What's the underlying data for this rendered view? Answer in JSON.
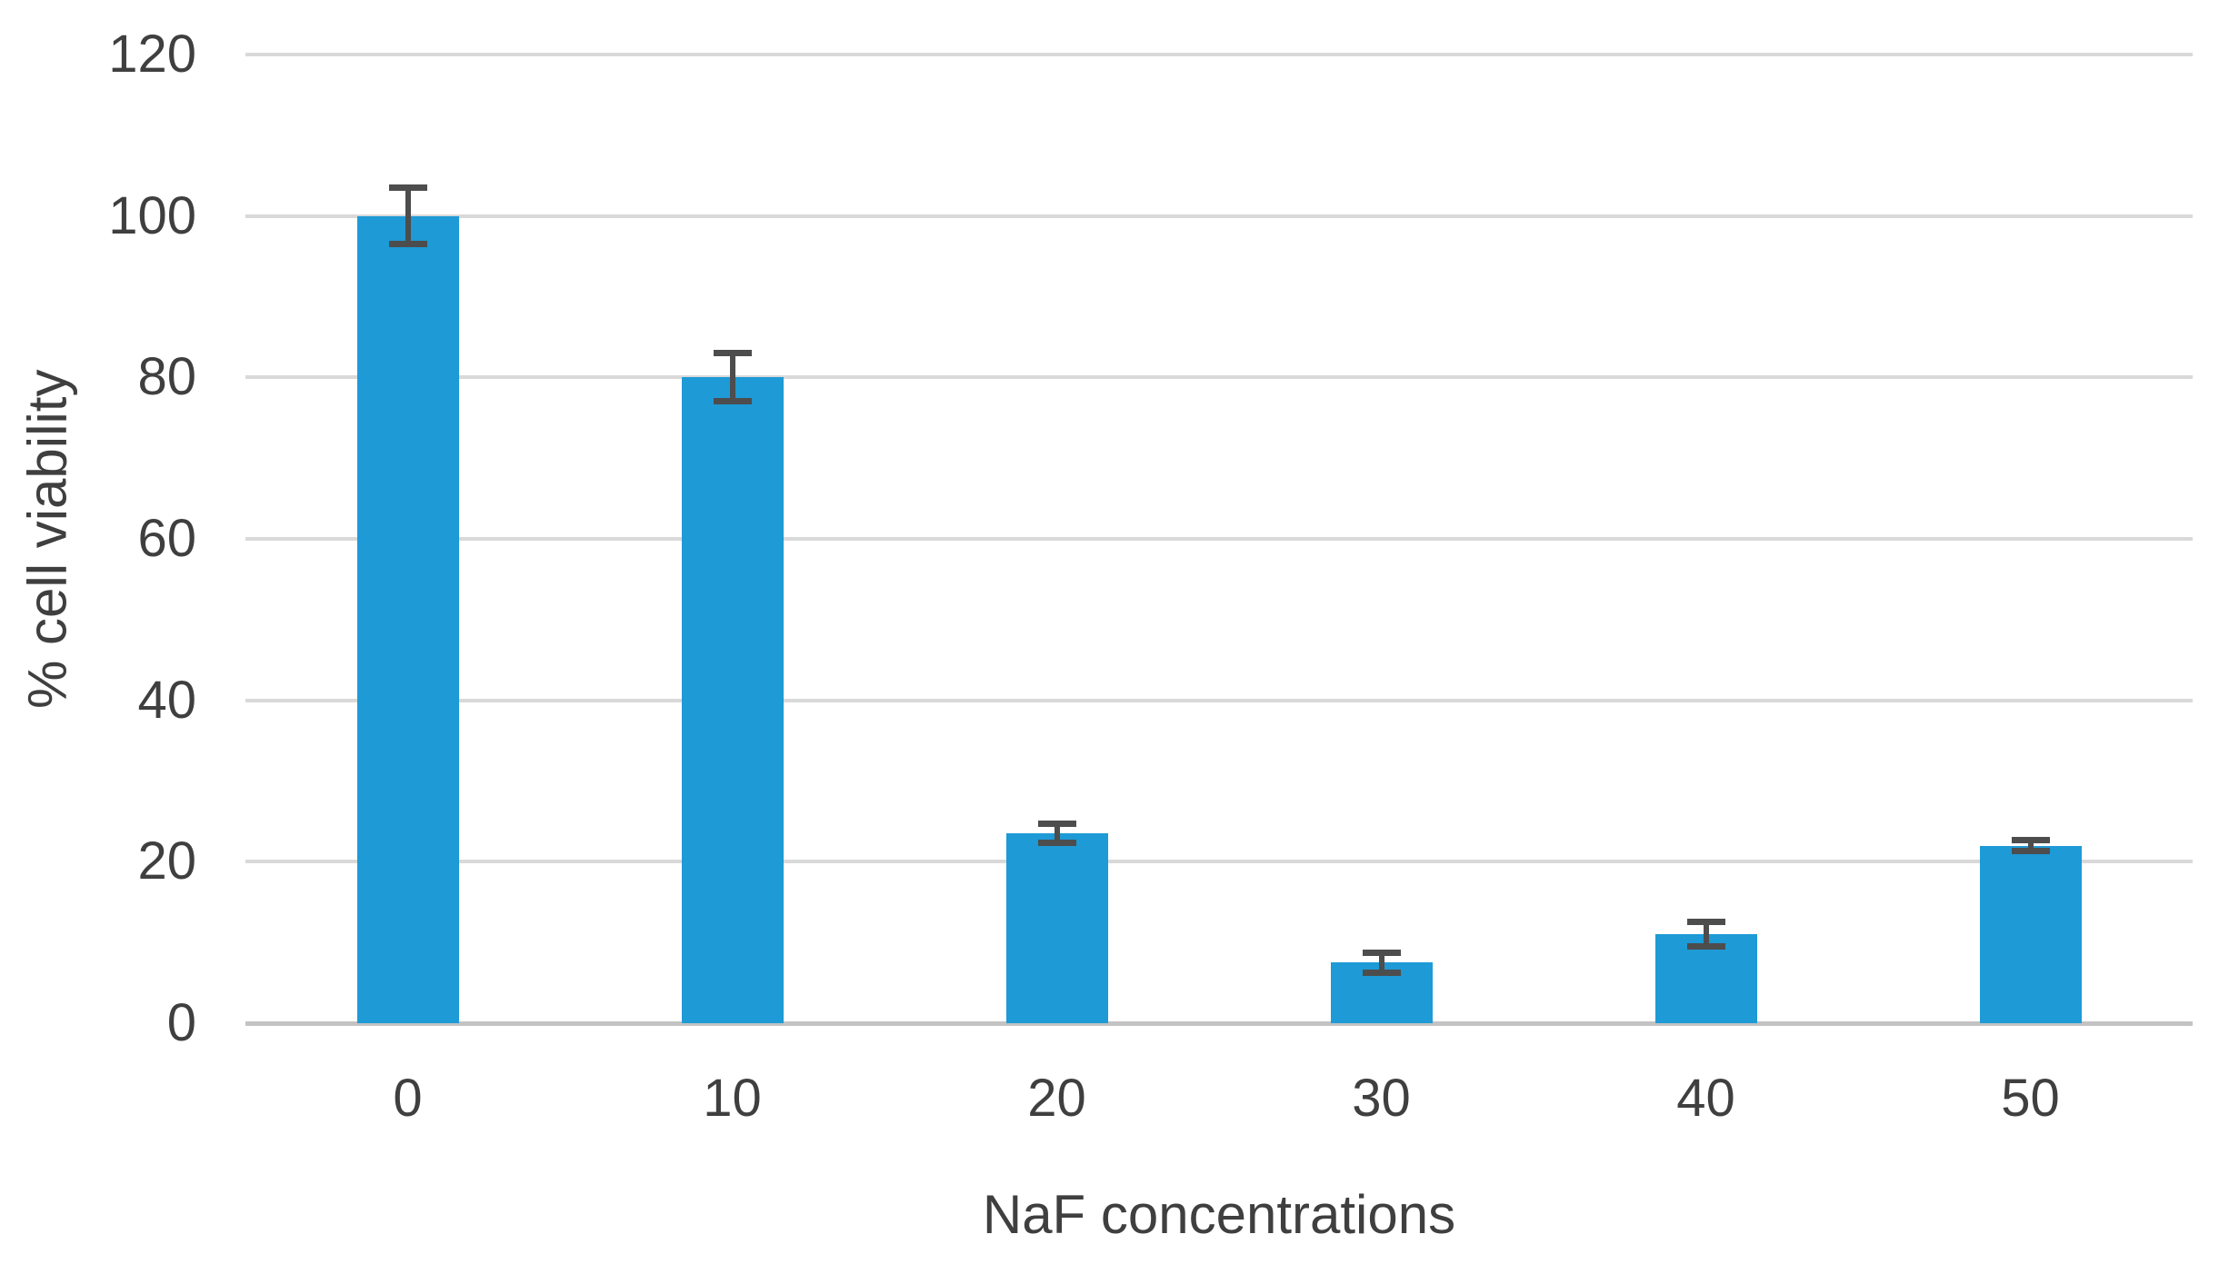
{
  "chart_data": {
    "type": "bar",
    "title": "",
    "xlabel": "NaF concentrations",
    "ylabel": "% cell viability",
    "categories": [
      "0",
      "10",
      "20",
      "30",
      "40",
      "50"
    ],
    "series": [
      {
        "name": "% cell viability",
        "values": [
          100,
          80,
          23.5,
          7.5,
          11,
          22
        ],
        "errors": [
          3.5,
          3,
          1.2,
          1.2,
          1.5,
          0.7
        ]
      }
    ],
    "yticks": [
      0,
      20,
      40,
      60,
      80,
      100,
      120
    ],
    "ylim": [
      0,
      120
    ],
    "grid": "horizontal-only",
    "legend_position": "none",
    "bar_color": "#1e9ad6",
    "error_bar_color": "#4d4d4d",
    "gridline_color": "#d9d9d9",
    "axis_line_color": "#c3c3c3",
    "text_color": "#3f3f3f"
  }
}
